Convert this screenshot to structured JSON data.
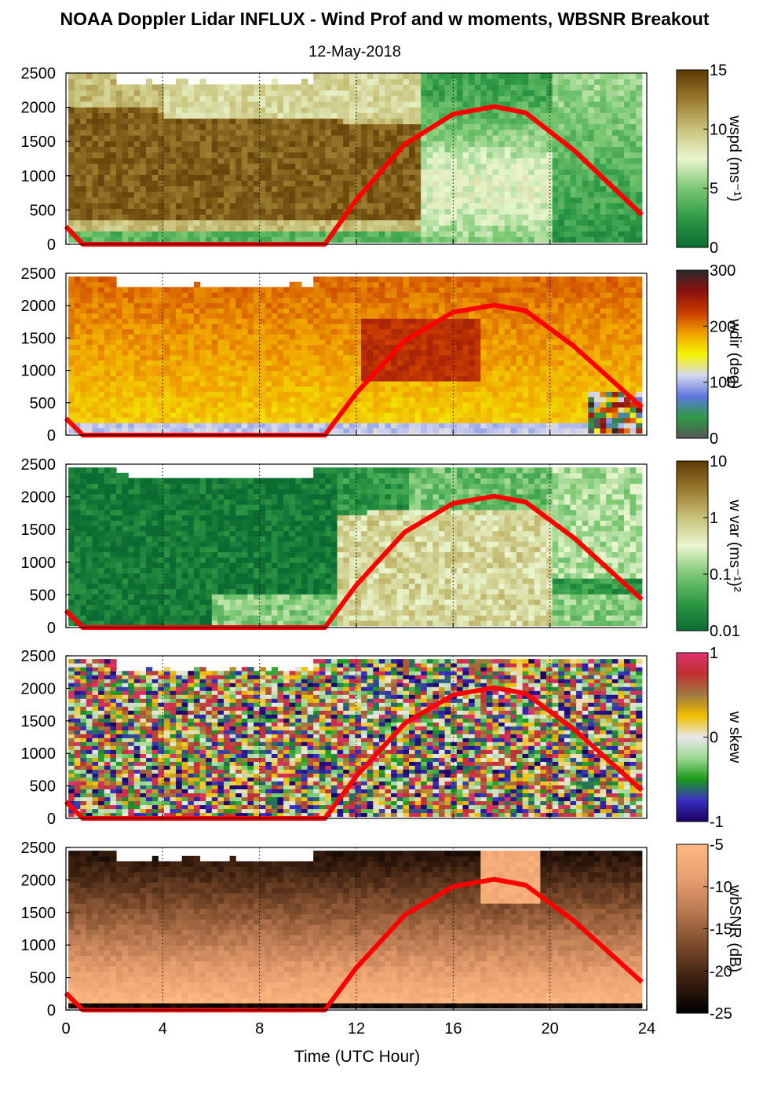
{
  "figure": {
    "title": "NOAA Doppler Lidar INFLUX - Wind Prof and w moments, WBSNR Breakout",
    "date": "12-May-2018",
    "xlabel": "Time (UTC Hour)"
  },
  "chart_data": [
    {
      "type": "heatmap",
      "field": "wspd",
      "colorbar_label": "wspd (ms⁻¹)",
      "colorbar_ticks": [
        "0",
        "5",
        "10",
        "15"
      ],
      "colorbar_range": [
        0,
        15
      ],
      "colormap": [
        "#0b6b32",
        "#2e9a45",
        "#7cc873",
        "#eaf6cf",
        "#c8c27a",
        "#9a7a2c",
        "#5e3a04"
      ],
      "xlim": [
        0,
        24
      ],
      "ylim": [
        0,
        2500
      ],
      "yticks": [
        "0",
        "500",
        "1000",
        "1500",
        "2000",
        "2500"
      ],
      "xticks": [
        "0",
        "4",
        "8",
        "12",
        "16",
        "20",
        "24"
      ],
      "sun_curve": {
        "x": [
          0,
          0.7,
          10.7,
          12,
          14,
          16,
          17.7,
          19,
          21,
          23.8
        ],
        "y": [
          260,
          0,
          0,
          650,
          1460,
          1900,
          2010,
          1920,
          1370,
          430
        ]
      }
    },
    {
      "type": "heatmap",
      "field": "wdir",
      "colorbar_label": "wdir (deg)",
      "colorbar_ticks": [
        "0",
        "100",
        "200",
        "300"
      ],
      "colorbar_range": [
        0,
        360
      ],
      "colormap": [
        "#555555",
        "#2e9a45",
        "#5e78e0",
        "#d8d8ee",
        "#f4f400",
        "#f0a000",
        "#c83a00",
        "#8c1010",
        "#2a2a2a"
      ],
      "xlim": [
        0,
        24
      ],
      "ylim": [
        0,
        2500
      ],
      "yticks": [
        "0",
        "500",
        "1000",
        "1500",
        "2000",
        "2500"
      ],
      "xticks": [
        "0",
        "4",
        "8",
        "12",
        "16",
        "20",
        "24"
      ],
      "sun_curve": {
        "x": [
          0,
          0.7,
          10.7,
          12,
          14,
          16,
          17.7,
          19,
          21,
          23.8
        ],
        "y": [
          260,
          0,
          0,
          650,
          1460,
          1900,
          2010,
          1920,
          1370,
          430
        ]
      }
    },
    {
      "type": "heatmap",
      "field": "w var",
      "colorbar_label": "w var (ms⁻¹)²",
      "colorbar_ticks": [
        "0.01",
        "0.1",
        "1",
        "10"
      ],
      "colorbar_range": [
        0.01,
        10
      ],
      "colorbar_scale": "log",
      "colormap": [
        "#0b6b32",
        "#2e9a45",
        "#7cc873",
        "#eaf6cf",
        "#c8c27a",
        "#9a7a2c",
        "#5e3a04"
      ],
      "xlim": [
        0,
        24
      ],
      "ylim": [
        0,
        2500
      ],
      "yticks": [
        "0",
        "500",
        "1000",
        "1500",
        "2000",
        "2500"
      ],
      "xticks": [
        "0",
        "4",
        "8",
        "12",
        "16",
        "20",
        "24"
      ],
      "sun_curve": {
        "x": [
          0,
          0.7,
          10.7,
          12,
          14,
          16,
          17.7,
          19,
          21,
          23.8
        ],
        "y": [
          260,
          0,
          0,
          650,
          1460,
          1900,
          2010,
          1920,
          1370,
          430
        ]
      }
    },
    {
      "type": "heatmap",
      "field": "w skew",
      "colorbar_label": "w skew",
      "colorbar_ticks": [
        "-1",
        "0",
        "1"
      ],
      "colorbar_range": [
        -1,
        1
      ],
      "colormap": [
        "#1a0060",
        "#3a30c0",
        "#1a9a1a",
        "#9cd890",
        "#e8e8e8",
        "#f0c000",
        "#a07a40",
        "#c03030",
        "#e03070"
      ],
      "xlim": [
        0,
        24
      ],
      "ylim": [
        0,
        2500
      ],
      "yticks": [
        "0",
        "500",
        "1000",
        "1500",
        "2000",
        "2500"
      ],
      "xticks": [
        "0",
        "4",
        "8",
        "12",
        "16",
        "20",
        "24"
      ],
      "sun_curve": {
        "x": [
          0,
          0.7,
          10.7,
          12,
          14,
          16,
          17.7,
          19,
          21,
          23.8
        ],
        "y": [
          260,
          0,
          0,
          650,
          1460,
          1900,
          2010,
          1920,
          1370,
          430
        ]
      }
    },
    {
      "type": "heatmap",
      "field": "wbSNR",
      "colorbar_label": "wbSNR (dB)",
      "colorbar_ticks": [
        "-25",
        "-20",
        "-15",
        "-10",
        "-5"
      ],
      "colorbar_range": [
        -25,
        -5
      ],
      "colormap": [
        "#000000",
        "#3c2010",
        "#7a4a2a",
        "#b87850",
        "#e8a070",
        "#ffb880"
      ],
      "xlim": [
        0,
        24
      ],
      "ylim": [
        0,
        2500
      ],
      "yticks": [
        "0",
        "500",
        "1000",
        "1500",
        "2000",
        "2500"
      ],
      "xticks": [
        "0",
        "4",
        "8",
        "12",
        "16",
        "20",
        "24"
      ],
      "sun_curve": {
        "x": [
          0,
          0.7,
          10.7,
          12,
          14,
          16,
          17.7,
          19,
          21,
          23.8
        ],
        "y": [
          260,
          0,
          0,
          650,
          1460,
          1900,
          2010,
          1920,
          1370,
          430
        ]
      }
    }
  ],
  "colors": {
    "sun_curve": "#ff0000",
    "gridline": "#000000"
  }
}
